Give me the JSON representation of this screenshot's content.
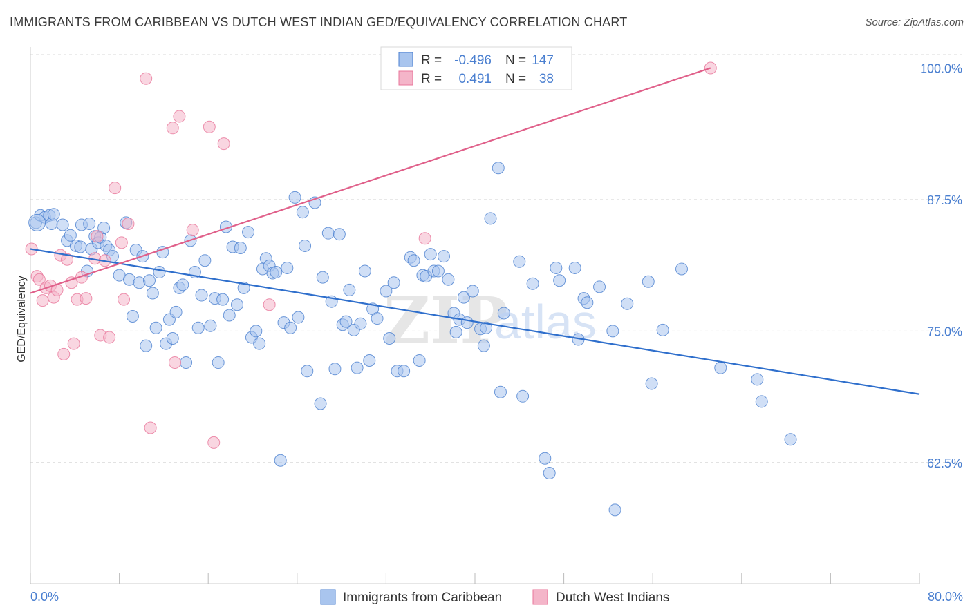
{
  "title": "IMMIGRANTS FROM CARIBBEAN VS DUTCH WEST INDIAN GED/EQUIVALENCY CORRELATION CHART",
  "source": "Source: ZipAtlas.com",
  "colors": {
    "blue": "#4a7fd0",
    "blue_fill": "#a9c5ee",
    "blue_line": "#2f6fcc",
    "pink": "#e8759a",
    "pink_fill": "#f4b5c9",
    "pink_line": "#e0608a",
    "grid": "#d9d9d9"
  },
  "legend_box": {
    "r_label": "R =",
    "n_label": "N =",
    "rows": [
      {
        "r": "-0.496",
        "n": "147",
        "color": "blue"
      },
      {
        "r": "0.491",
        "n": "38",
        "color": "pink"
      }
    ]
  },
  "chart_data": {
    "type": "scatter",
    "xlabel": "",
    "ylabel": "GED/Equivalency",
    "xlim": [
      0,
      80
    ],
    "ylim": [
      51,
      102
    ],
    "x_tick_labels": [
      "0.0%",
      "80.0%"
    ],
    "y_ticks": [
      62.5,
      75.0,
      87.5,
      100.0
    ],
    "y_tick_labels": [
      "62.5%",
      "75.0%",
      "87.5%",
      "100.0%"
    ],
    "grid": true,
    "legend_position": "bottom-center",
    "series": [
      {
        "name": "Immigrants from Caribbean",
        "color": "blue",
        "trend": {
          "x0": 0,
          "y0": 82.8,
          "x1": 80,
          "y1": 69.0
        },
        "points": [
          [
            0.5,
            85.3
          ],
          [
            0.9,
            86.0
          ],
          [
            1.3,
            85.8
          ],
          [
            1.7,
            86.0
          ],
          [
            1.9,
            85.2
          ],
          [
            2.1,
            86.1
          ],
          [
            2.9,
            85.1
          ],
          [
            3.3,
            83.6
          ],
          [
            3.6,
            84.1
          ],
          [
            4.1,
            83.1
          ],
          [
            4.5,
            83.0
          ],
          [
            4.6,
            85.1
          ],
          [
            5.1,
            80.7
          ],
          [
            5.3,
            85.2
          ],
          [
            5.5,
            82.8
          ],
          [
            5.8,
            84.0
          ],
          [
            6.1,
            83.4
          ],
          [
            6.3,
            83.9
          ],
          [
            6.6,
            84.8
          ],
          [
            6.8,
            83.1
          ],
          [
            7.1,
            82.7
          ],
          [
            7.4,
            82.1
          ],
          [
            8.0,
            80.3
          ],
          [
            8.6,
            85.3
          ],
          [
            8.9,
            79.9
          ],
          [
            9.2,
            76.4
          ],
          [
            9.5,
            82.7
          ],
          [
            9.8,
            79.6
          ],
          [
            10.1,
            82.1
          ],
          [
            10.4,
            73.6
          ],
          [
            10.7,
            79.8
          ],
          [
            11.0,
            78.6
          ],
          [
            11.3,
            75.3
          ],
          [
            11.6,
            80.6
          ],
          [
            11.9,
            82.5
          ],
          [
            12.2,
            73.8
          ],
          [
            12.5,
            76.1
          ],
          [
            12.8,
            74.3
          ],
          [
            13.1,
            76.8
          ],
          [
            13.4,
            79.1
          ],
          [
            13.7,
            79.4
          ],
          [
            14.0,
            72.0
          ],
          [
            14.4,
            83.6
          ],
          [
            14.8,
            80.6
          ],
          [
            15.1,
            75.3
          ],
          [
            15.4,
            78.4
          ],
          [
            15.7,
            81.7
          ],
          [
            16.2,
            75.5
          ],
          [
            16.6,
            78.1
          ],
          [
            16.9,
            72.0
          ],
          [
            17.3,
            78.0
          ],
          [
            17.6,
            84.9
          ],
          [
            17.9,
            76.5
          ],
          [
            18.2,
            83.0
          ],
          [
            18.6,
            77.5
          ],
          [
            18.9,
            82.9
          ],
          [
            19.2,
            79.1
          ],
          [
            19.6,
            84.4
          ],
          [
            19.9,
            74.4
          ],
          [
            20.3,
            75.0
          ],
          [
            20.6,
            73.8
          ],
          [
            20.9,
            80.9
          ],
          [
            21.2,
            81.9
          ],
          [
            21.5,
            81.2
          ],
          [
            21.8,
            80.5
          ],
          [
            22.1,
            80.6
          ],
          [
            22.5,
            62.7
          ],
          [
            22.8,
            75.8
          ],
          [
            23.1,
            81.0
          ],
          [
            23.4,
            75.3
          ],
          [
            23.8,
            87.7
          ],
          [
            24.1,
            76.3
          ],
          [
            24.5,
            86.3
          ],
          [
            24.7,
            83.1
          ],
          [
            24.9,
            71.2
          ],
          [
            25.6,
            87.2
          ],
          [
            26.1,
            68.1
          ],
          [
            26.3,
            80.1
          ],
          [
            26.8,
            84.3
          ],
          [
            27.1,
            77.8
          ],
          [
            27.4,
            71.4
          ],
          [
            27.8,
            84.2
          ],
          [
            28.1,
            75.6
          ],
          [
            28.4,
            75.9
          ],
          [
            28.7,
            78.9
          ],
          [
            29.1,
            75.1
          ],
          [
            29.4,
            71.5
          ],
          [
            29.7,
            75.7
          ],
          [
            30.1,
            80.7
          ],
          [
            30.5,
            72.2
          ],
          [
            30.8,
            77.1
          ],
          [
            31.2,
            76.2
          ],
          [
            32.0,
            78.8
          ],
          [
            32.3,
            74.3
          ],
          [
            32.7,
            79.6
          ],
          [
            33.0,
            71.2
          ],
          [
            33.6,
            71.2
          ],
          [
            34.2,
            82.0
          ],
          [
            34.5,
            81.7
          ],
          [
            35.0,
            72.2
          ],
          [
            35.3,
            80.3
          ],
          [
            35.6,
            80.2
          ],
          [
            36.0,
            82.3
          ],
          [
            36.3,
            80.7
          ],
          [
            36.7,
            80.7
          ],
          [
            37.2,
            82.1
          ],
          [
            37.6,
            79.9
          ],
          [
            38.1,
            76.7
          ],
          [
            38.3,
            74.9
          ],
          [
            38.6,
            76.1
          ],
          [
            39.0,
            78.2
          ],
          [
            39.3,
            75.8
          ],
          [
            39.8,
            78.8
          ],
          [
            40.5,
            75.2
          ],
          [
            40.8,
            73.6
          ],
          [
            41.0,
            75.3
          ],
          [
            41.4,
            85.7
          ],
          [
            42.1,
            90.5
          ],
          [
            42.3,
            69.2
          ],
          [
            42.6,
            76.7
          ],
          [
            44.0,
            81.6
          ],
          [
            44.3,
            68.8
          ],
          [
            45.2,
            79.5
          ],
          [
            46.3,
            62.9
          ],
          [
            46.7,
            61.5
          ],
          [
            47.3,
            81.0
          ],
          [
            47.6,
            79.8
          ],
          [
            49.0,
            81.0
          ],
          [
            49.3,
            74.2
          ],
          [
            49.8,
            78.1
          ],
          [
            50.1,
            77.7
          ],
          [
            51.2,
            79.2
          ],
          [
            52.4,
            75.0
          ],
          [
            52.6,
            58.0
          ],
          [
            53.7,
            77.6
          ],
          [
            55.6,
            79.7
          ],
          [
            55.9,
            70.0
          ],
          [
            56.9,
            75.1
          ],
          [
            58.6,
            80.9
          ],
          [
            62.1,
            71.5
          ],
          [
            65.4,
            70.4
          ],
          [
            65.8,
            68.3
          ],
          [
            68.4,
            64.7
          ]
        ]
      },
      {
        "name": "Dutch West Indians",
        "color": "pink",
        "trend": {
          "x0": 0,
          "y0": 78.6,
          "x1": 61.2,
          "y1": 100.0
        },
        "points": [
          [
            0.1,
            82.8
          ],
          [
            0.6,
            80.2
          ],
          [
            0.8,
            79.9
          ],
          [
            1.1,
            77.9
          ],
          [
            1.4,
            79.1
          ],
          [
            1.8,
            79.3
          ],
          [
            2.1,
            78.2
          ],
          [
            2.4,
            78.9
          ],
          [
            2.7,
            82.2
          ],
          [
            3.0,
            72.8
          ],
          [
            3.3,
            81.8
          ],
          [
            3.7,
            79.6
          ],
          [
            3.9,
            73.8
          ],
          [
            4.2,
            78.0
          ],
          [
            4.6,
            80.1
          ],
          [
            5.0,
            78.1
          ],
          [
            5.8,
            81.9
          ],
          [
            6.0,
            84.0
          ],
          [
            6.3,
            74.6
          ],
          [
            6.7,
            81.7
          ],
          [
            7.1,
            74.4
          ],
          [
            7.6,
            88.6
          ],
          [
            8.2,
            83.4
          ],
          [
            8.4,
            78.0
          ],
          [
            8.8,
            85.2
          ],
          [
            10.4,
            99.0
          ],
          [
            10.8,
            65.8
          ],
          [
            12.8,
            94.3
          ],
          [
            13.0,
            72.0
          ],
          [
            13.4,
            95.4
          ],
          [
            14.6,
            84.6
          ],
          [
            16.1,
            94.4
          ],
          [
            16.5,
            64.4
          ],
          [
            17.4,
            92.8
          ],
          [
            21.5,
            77.5
          ],
          [
            35.5,
            83.8
          ],
          [
            61.2,
            100.0
          ]
        ]
      }
    ]
  },
  "watermark": {
    "zip": "ZIP",
    "atlas": "atlas"
  }
}
